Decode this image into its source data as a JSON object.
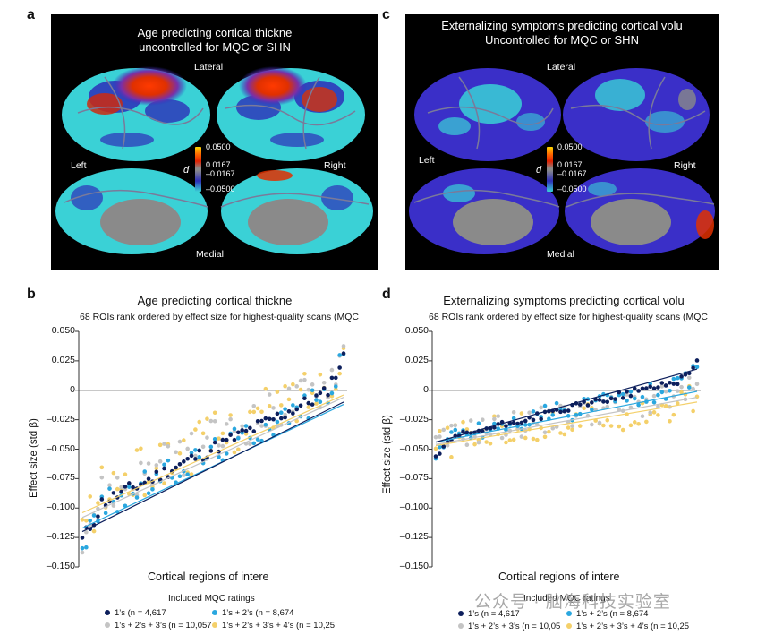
{
  "panel_a": {
    "letter": "a",
    "title_line1": "Age predicting cortical thickne",
    "title_line2": "uncontrolled for MQC or SHN",
    "lateral": "Lateral",
    "medial": "Medial",
    "left": "Left",
    "right": "Right",
    "colorbar_label": "d",
    "ticks": [
      "0.0500",
      "0.0167",
      "–0.0167",
      "–0.0500"
    ]
  },
  "panel_c": {
    "letter": "c",
    "title_line1": "Externalizing symptoms predicting cortical volu",
    "title_line2": "Uncontrolled for MQC or SHN",
    "lateral": "Lateral",
    "medial": "Medial",
    "left": "Left",
    "right": "Right",
    "colorbar_label": "d",
    "ticks": [
      "0.0500",
      "0.0167",
      "–0.0167",
      "–0.0500"
    ]
  },
  "panel_b": {
    "letter": "b",
    "title": "Age predicting cortical thickne",
    "subtitle": "68 ROIs rank ordered by effect size for highest-quality scans (MQC",
    "ylabel": "Effect size (std β)",
    "xlabel": "Cortical regions of intere",
    "legend_title": "Included MQC ratings",
    "legend": [
      "1’s (n = 4,617",
      "1’s + 2’s (n = 8,674",
      "1’s + 2’s + 3’s (n = 10,057",
      "1’s + 2’s + 3’s + 4’s (n = 10,25"
    ]
  },
  "panel_d": {
    "letter": "d",
    "title": "Externalizing symptoms predicting cortical volu",
    "subtitle": "68 ROIs rank ordered by effect size for highest-quality scans (MQC",
    "ylabel": "Effect size (std β)",
    "xlabel": "Cortical regions of intere",
    "legend_title": "Included MQC ratings",
    "legend": [
      "1’s (n = 4,617",
      "1’s + 2’s (n = 8,674",
      "1’s + 2’s + 3’s (n = 10,05",
      "1’s + 2’s + 3’s + 4’s (n = 10,25"
    ]
  },
  "watermark": "公众号 · 脑海科技实验室",
  "colors": {
    "s1": "#0d1f5c",
    "s2": "#2aa7df",
    "s3": "#c4c4c4",
    "s4": "#f4d06a"
  },
  "chart_data": [
    {
      "type": "scatter",
      "title": "Age predicting cortical thickne",
      "xlabel": "Cortical regions of intere",
      "ylabel": "Effect size (std β)",
      "ylim": [
        -0.15,
        0.05
      ],
      "yticks": [
        "0.050",
        "0.025",
        "0",
        "–0.025",
        "–0.050",
        "–0.075",
        "–0.100",
        "–0.125",
        "–0.150"
      ],
      "ytick_values": [
        0.05,
        0.025,
        0,
        -0.025,
        -0.05,
        -0.075,
        -0.1,
        -0.125,
        -0.15
      ],
      "n_points": 68,
      "series": [
        {
          "name": "1’s (n = 4,617",
          "start": -0.127,
          "end": 0.028,
          "fit": [
            -0.12,
            -0.01
          ],
          "jitter": 0.006
        },
        {
          "name": "1’s + 2’s (n = 8,674",
          "start": -0.13,
          "end": 0.026,
          "fit": [
            -0.117,
            -0.012
          ],
          "jitter": 0.012
        },
        {
          "name": "1’s + 2’s + 3’s (n = 10,057",
          "start": -0.12,
          "end": 0.034,
          "fit": [
            -0.108,
            -0.006
          ],
          "jitter": 0.018
        },
        {
          "name": "1’s + 2’s + 3’s + 4’s (n = 10,25",
          "start": -0.118,
          "end": 0.036,
          "fit": [
            -0.104,
            -0.004
          ],
          "jitter": 0.022
        }
      ]
    },
    {
      "type": "scatter",
      "title": "Externalizing symptoms predicting cortical volu",
      "xlabel": "Cortical regions of intere",
      "ylabel": "Effect size (std β)",
      "ylim": [
        -0.15,
        0.05
      ],
      "yticks": [
        "0.050",
        "0.025",
        "0",
        "–0.025",
        "–0.050",
        "–0.075",
        "–0.100",
        "–0.125",
        "–0.150"
      ],
      "ytick_values": [
        0.05,
        0.025,
        0,
        -0.025,
        -0.05,
        -0.075,
        -0.1,
        -0.125,
        -0.15
      ],
      "n_points": 68,
      "series": [
        {
          "name": "1’s (n = 4,617",
          "start": -0.056,
          "end": 0.024,
          "fit": [
            -0.044,
            0.018
          ],
          "jitter": 0.003
        },
        {
          "name": "1’s + 2’s (n = 8,674",
          "start": -0.052,
          "end": 0.017,
          "fit": [
            -0.044,
            -0.001
          ],
          "jitter": 0.009
        },
        {
          "name": "1’s + 2’s + 3’s (n = 10,05",
          "start": -0.048,
          "end": 0.004,
          "fit": [
            -0.046,
            -0.006
          ],
          "jitter": 0.012
        },
        {
          "name": "1’s + 2’s + 3’s + 4’s (n = 10,25",
          "start": -0.05,
          "end": -0.004,
          "fit": [
            -0.047,
            -0.01
          ],
          "jitter": 0.014
        }
      ]
    }
  ]
}
